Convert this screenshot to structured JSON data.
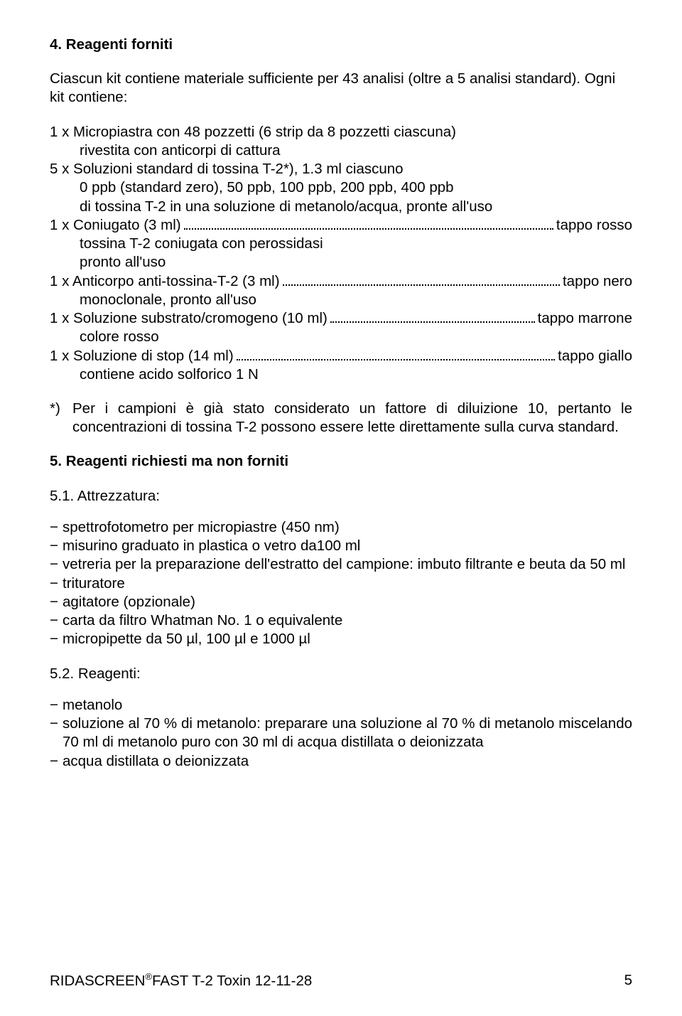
{
  "s4": {
    "heading": "4. Reagenti forniti",
    "intro": "Ciascun kit contiene materiale sufficiente per 43 analisi (oltre a 5 analisi standard). Ogni kit contiene:",
    "r1_l1": "1 x Micropiastra con 48 pozzetti (6 strip da 8 pozzetti ciascuna)",
    "r1_l2": "rivestita con anticorpi di cattura",
    "r2_l1": "5 x Soluzioni standard di tossina T-2*), 1.3 ml ciascuno",
    "r2_l2": "0 ppb (standard zero), 50 ppb, 100 ppb, 200 ppb, 400 ppb",
    "r2_l3": "di tossina T-2 in una soluzione di metanolo/acqua, pronte all'uso",
    "r3_left": "1 x Coniugato (3 ml)",
    "r3_right": "tappo rosso",
    "r3_l2": "tossina T-2 coniugata con perossidasi",
    "r3_l3": "pronto all'uso",
    "r4_left": "1 x Anticorpo anti-tossina-T-2 (3 ml)",
    "r4_right": "tappo nero",
    "r4_l2": "monoclonale, pronto all'uso",
    "r5_left": "1 x Soluzione substrato/cromogeno (10 ml)",
    "r5_right": "tappo marrone",
    "r5_l2": "colore rosso",
    "r6_left": "1 x Soluzione di stop (14 ml)",
    "r6_right": "tappo giallo",
    "r6_l2": "contiene acido solforico 1 N",
    "note_marker": "*)",
    "note_text": "Per i campioni è già stato considerato un fattore di diluizione 10, pertanto le concentrazioni di tossina T-2 possono essere lette direttamente sulla curva standard."
  },
  "s5": {
    "heading": "5. Reagenti richiesti ma non forniti",
    "sub1": "5.1. Attrezzatura:",
    "items1": [
      "spettrofotometro per micropiastre (450 nm)",
      "misurino graduato in plastica o vetro da100 ml",
      "vetreria per la preparazione dell'estratto del campione: imbuto filtrante e beuta da 50 ml",
      "trituratore",
      "agitatore (opzionale)",
      "carta da filtro Whatman No. 1 o equivalente",
      "micropipette da 50 µl, 100 µl e 1000 µl"
    ],
    "sub2": "5.2. Reagenti:",
    "items2": [
      "metanolo",
      "soluzione al 70 % di metanolo: preparare una soluzione al 70 % di metanolo miscelando 70 ml di metanolo puro con 30 ml di acqua distillata o deionizzata",
      "acqua distillata o deionizzata"
    ]
  },
  "footer": {
    "left_a": "RIDASCREEN",
    "left_sup": "®",
    "left_b": "FAST  T-2 Toxin   12-11-28",
    "page": "5"
  }
}
